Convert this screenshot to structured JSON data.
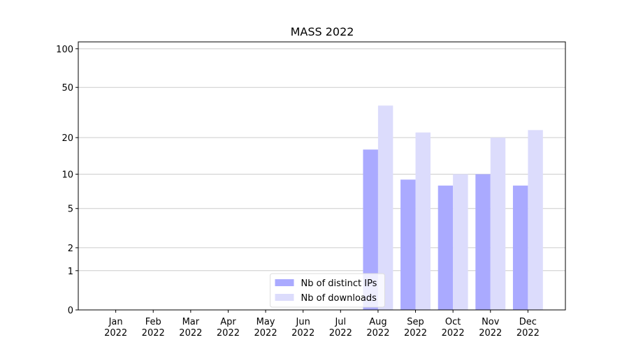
{
  "chart_data": {
    "type": "bar",
    "title": "MASS 2022",
    "categories": [
      "Jan 2022",
      "Feb 2022",
      "Mar 2022",
      "Apr 2022",
      "May 2022",
      "Jun 2022",
      "Jul 2022",
      "Aug 2022",
      "Sep 2022",
      "Oct 2022",
      "Nov 2022",
      "Dec 2022"
    ],
    "series": [
      {
        "name": "Nb of distinct IPs",
        "color": "#aaaaff",
        "values": [
          0,
          0,
          0,
          0,
          0,
          0,
          0,
          16,
          9,
          8,
          10,
          8
        ]
      },
      {
        "name": "Nb of downloads",
        "color": "#dcdcfc",
        "values": [
          0,
          0,
          0,
          0,
          0,
          0,
          0,
          36,
          22,
          10,
          20,
          23
        ]
      }
    ],
    "ylim": [
      0,
      113
    ],
    "yticks": [
      0,
      1,
      2,
      5,
      10,
      20,
      50,
      100
    ],
    "yscale": "log1p",
    "grid": true,
    "legend": "lower center"
  }
}
